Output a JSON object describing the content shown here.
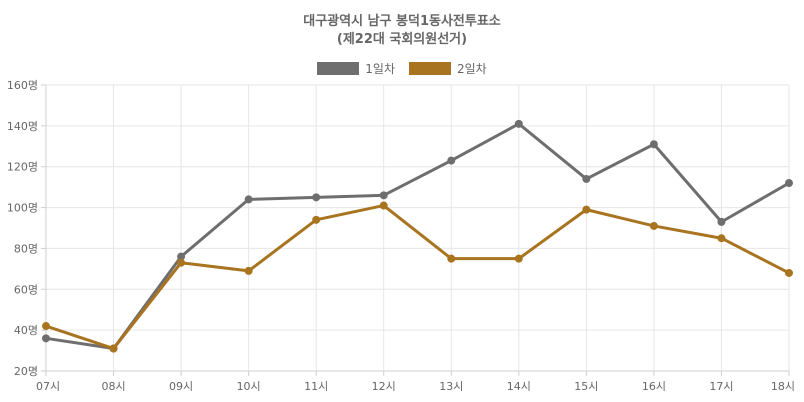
{
  "chart_data": {
    "type": "line",
    "title": "대구광역시 남구 봉덕1동사전투표소",
    "subtitle": "(제22대 국회의원선거)",
    "categories": [
      "07시",
      "08시",
      "09시",
      "10시",
      "11시",
      "12시",
      "13시",
      "14시",
      "15시",
      "16시",
      "17시",
      "18시"
    ],
    "series": [
      {
        "name": "1일차",
        "color": "#6e6e6e",
        "values": [
          36,
          31,
          76,
          104,
          105,
          106,
          123,
          141,
          114,
          131,
          93,
          112
        ]
      },
      {
        "name": "2일차",
        "color": "#a8741f",
        "values": [
          42,
          31,
          73,
          69,
          94,
          101,
          75,
          75,
          99,
          91,
          85,
          68
        ]
      }
    ],
    "y_ticks": [
      "20명",
      "40명",
      "60명",
      "80명",
      "100명",
      "120명",
      "140명",
      "160명"
    ],
    "ylim": [
      20,
      160
    ],
    "y_step": 20,
    "grid": true,
    "legend_position": "top"
  }
}
